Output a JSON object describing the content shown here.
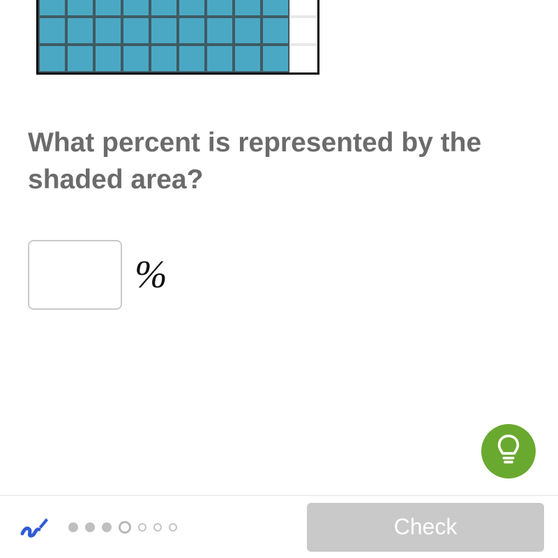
{
  "grid": {
    "rows": 3,
    "cols": 10,
    "first_row_partial_height": true,
    "cells_shaded_per_row": 9,
    "shaded_color": "#4ba8c4",
    "unshaded_color": "#ffffff",
    "cell_border_color": "#3f5a63",
    "unshaded_border_color": "#e8e8e8",
    "grid_outer_border_color": "#000000"
  },
  "question_text": "What percent is represented by the shaded area?",
  "answer": {
    "value": "",
    "unit": "%"
  },
  "hint": {
    "bg": "#6aa92f",
    "icon": "lightbulb"
  },
  "footer": {
    "scribble_color": "#2e5bd6",
    "progress": {
      "total": 7,
      "states": [
        "done",
        "done",
        "done",
        "current",
        "todo",
        "todo",
        "todo"
      ],
      "done_color": "#bfbfbf",
      "current_border": "#b8b8b8",
      "todo_border": "#c4c4c4"
    },
    "check_label": "Check",
    "check_bg": "#c9c9c9",
    "check_color": "#ffffff"
  }
}
